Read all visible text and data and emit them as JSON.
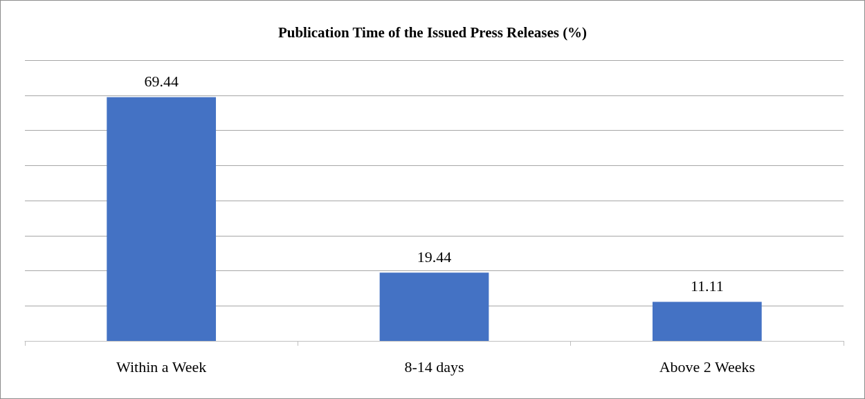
{
  "chart_data": {
    "type": "bar",
    "title": "Publication Time of the Issued Press Releases (%)",
    "categories": [
      "Within a Week",
      "8-14 days",
      "Above 2 Weeks"
    ],
    "values": [
      69.44,
      19.44,
      11.11
    ],
    "color": "#4472c4",
    "ylim": [
      0,
      80
    ],
    "yticks": [
      {
        "value": 0,
        "label": null
      },
      {
        "value": 10,
        "label": null
      },
      {
        "value": 20,
        "label": null
      },
      {
        "value": 30,
        "label": null
      },
      {
        "value": 40,
        "label": null
      },
      {
        "value": 50,
        "label": null
      },
      {
        "value": 60,
        "label": null
      },
      {
        "value": 70,
        "label": null
      },
      {
        "value": 80,
        "label": null
      }
    ],
    "grid": true,
    "tick_labels": "x",
    "data_labels": true
  }
}
